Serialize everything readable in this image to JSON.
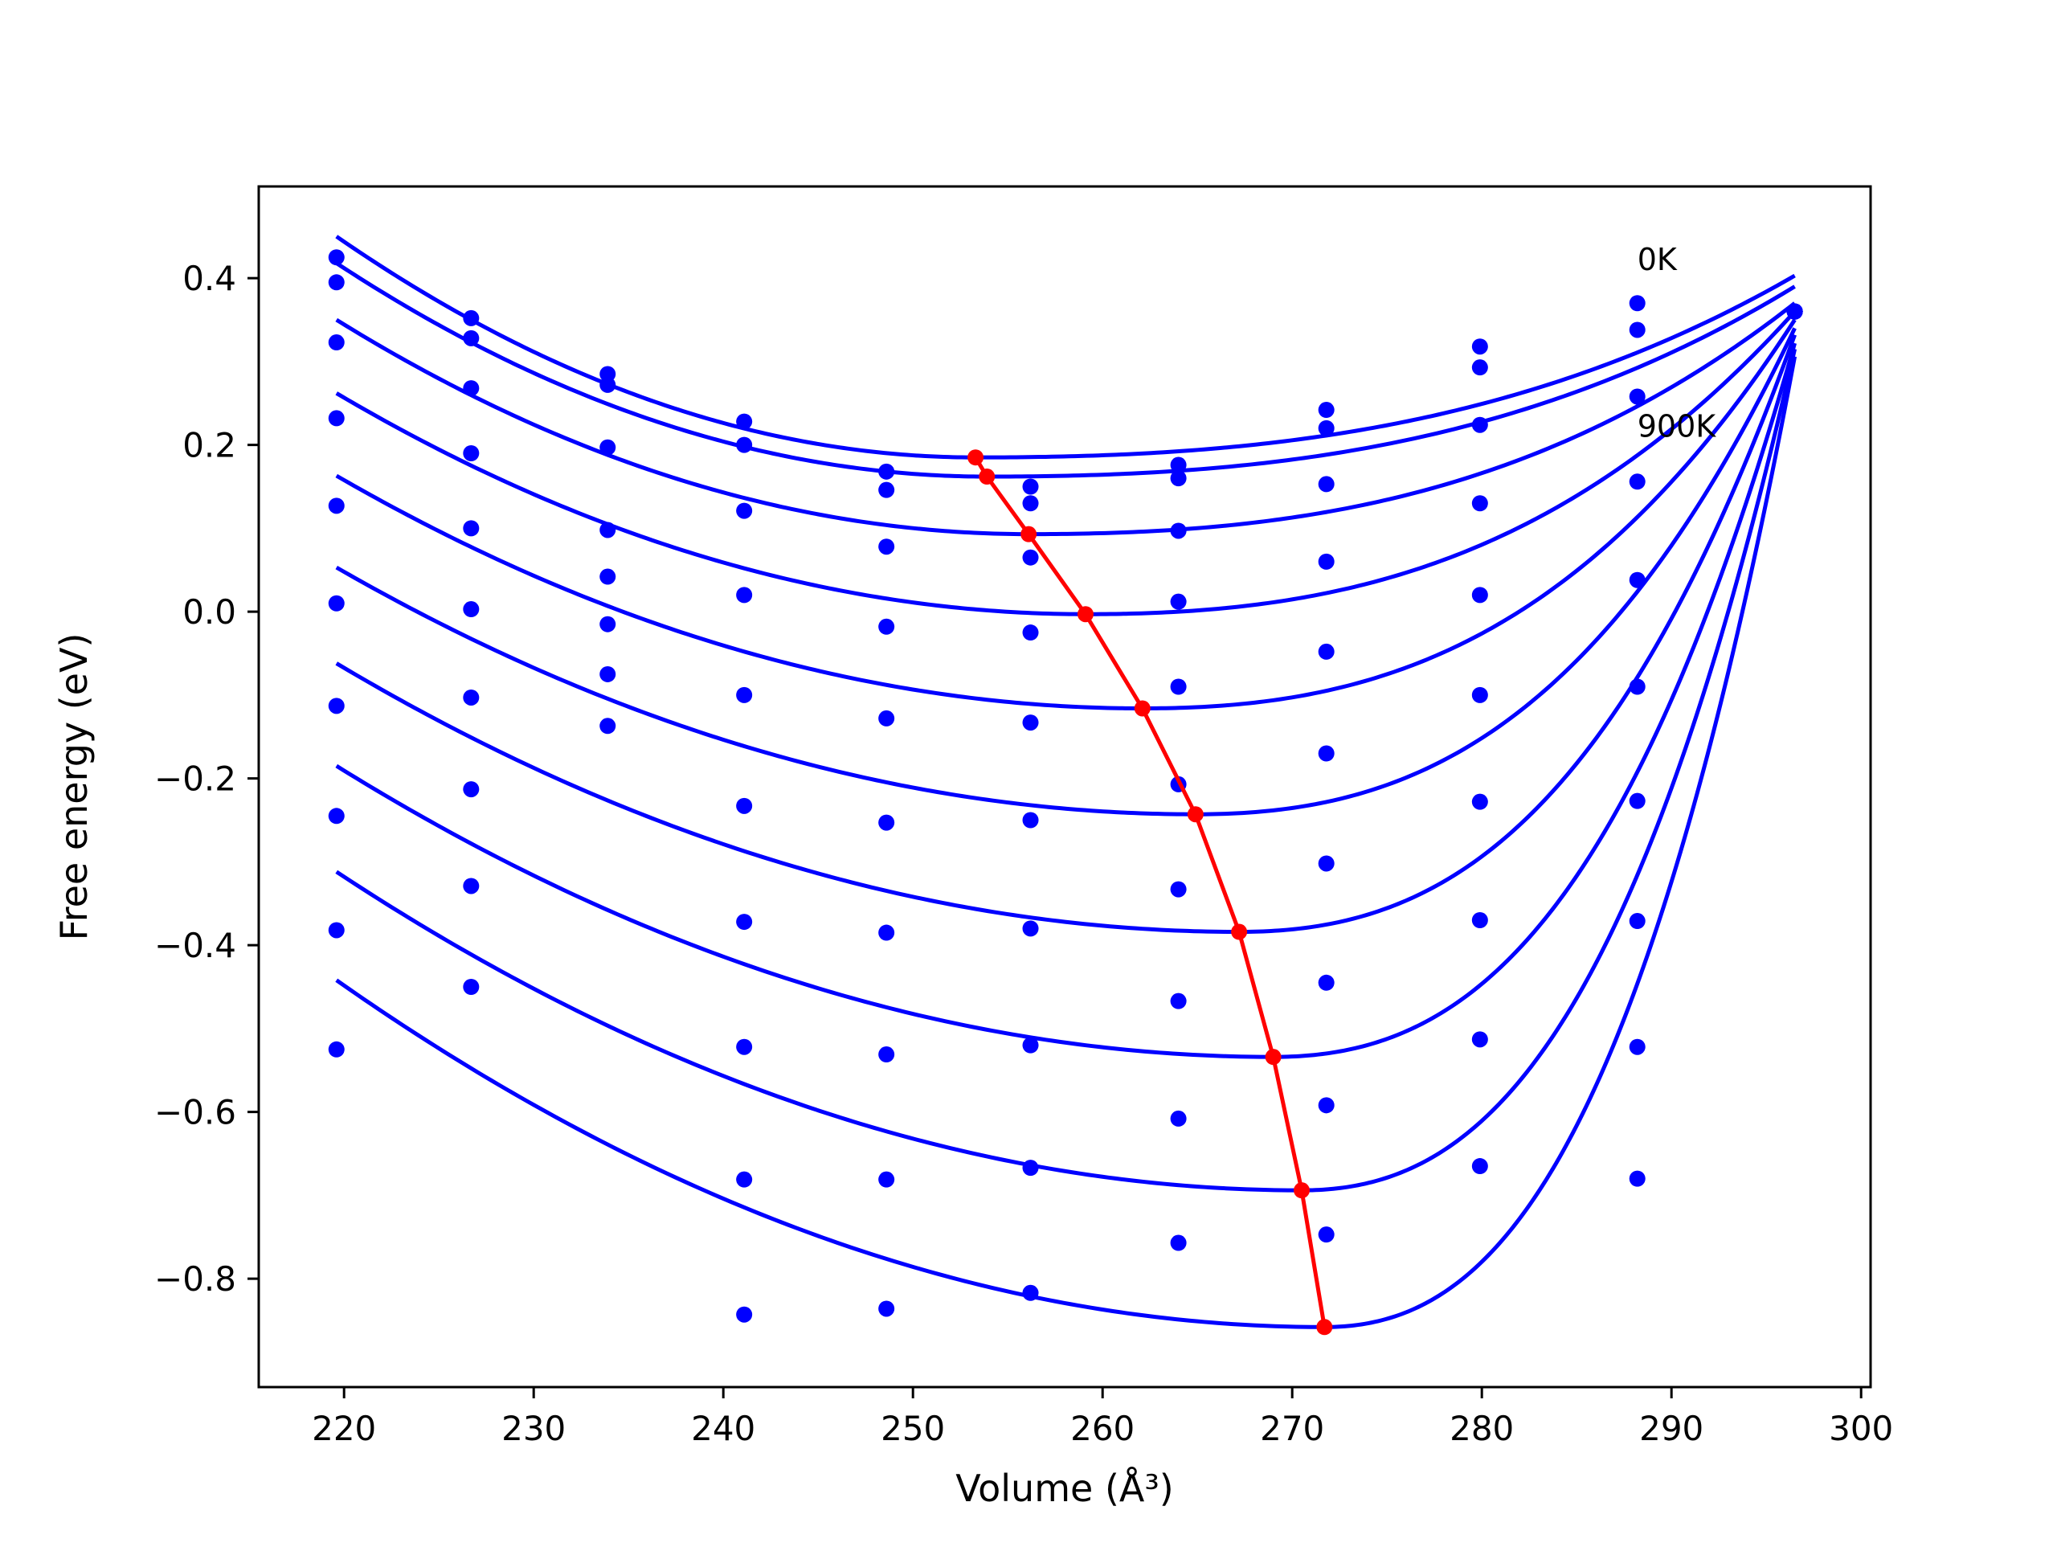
{
  "chart_data": {
    "type": "scatter",
    "xlabel": "Volume (Å³)",
    "ylabel": "Free energy (eV)",
    "xlim": [
      215.5,
      300.5
    ],
    "ylim": [
      -0.93,
      0.51
    ],
    "x_ticks": [
      220,
      230,
      240,
      250,
      260,
      270,
      280,
      290,
      300
    ],
    "y_ticks": [
      0.4,
      0.2,
      0.0,
      -0.2,
      -0.4,
      -0.6,
      -0.8
    ],
    "y_tick_labels": [
      "0.4",
      "0.2",
      "0.0",
      "−0.2",
      "−0.4",
      "−0.6",
      "−0.8"
    ],
    "grid": false,
    "annotations": [
      {
        "text": "0K",
        "x": 288.2,
        "y": 0.41
      },
      {
        "text": "900K",
        "x": 288.2,
        "y": 0.21
      }
    ],
    "colors": {
      "fit": "#0000ff",
      "points": "#0000ff",
      "minima": "#ff0000"
    },
    "volumes": [
      219.6,
      226.7,
      233.9,
      241.1,
      248.6,
      256.2,
      264.0,
      271.8,
      279.9,
      288.2,
      296.5
    ],
    "series": [
      {
        "points": [
          0.425,
          0.352,
          0.285,
          0.228,
          0.168,
          0.15,
          0.176,
          0.242,
          0.318,
          0.37,
          0.36
        ],
        "fit": {
          "x_start": 219.6,
          "y_start": 0.45,
          "x_min": 253.3,
          "y_min": 0.185,
          "y_end": 0.403
        }
      },
      {
        "points": [
          0.395,
          0.328,
          0.272,
          0.2,
          0.146,
          0.13,
          0.16,
          0.22,
          0.293,
          0.338,
          0.36
        ],
        "fit": {
          "x_start": 219.6,
          "y_start": 0.418,
          "x_min": 253.9,
          "y_min": 0.162,
          "y_end": 0.39
        }
      },
      {
        "points": [
          0.323,
          0.268,
          0.197,
          0.121,
          0.078,
          0.065,
          0.097,
          0.153,
          0.224,
          0.258,
          0.36
        ],
        "fit": {
          "x_start": 219.6,
          "y_start": 0.35,
          "x_min": 256.1,
          "y_min": 0.093,
          "y_end": 0.37
        }
      },
      {
        "points": [
          0.232,
          0.19,
          0.098,
          0.02,
          -0.018,
          -0.025,
          0.012,
          0.06,
          0.13,
          0.156,
          0.36
        ],
        "fit": {
          "x_start": 219.6,
          "y_start": 0.262,
          "x_min": 259.1,
          "y_min": -0.003,
          "y_end": 0.36
        }
      },
      {
        "points": [
          0.127,
          0.1,
          0.042,
          -0.1,
          -0.128,
          -0.133,
          -0.09,
          -0.048,
          0.02,
          0.038,
          0.36
        ],
        "fit": {
          "x_start": 219.6,
          "y_start": 0.163,
          "x_min": 262.1,
          "y_min": -0.116,
          "y_end": 0.35
        }
      },
      {
        "points": [
          0.01,
          0.003,
          -0.015,
          -0.233,
          -0.253,
          -0.25,
          -0.207,
          -0.17,
          -0.1,
          -0.09,
          0.36
        ],
        "fit": {
          "x_start": 219.6,
          "y_start": 0.053,
          "x_min": 264.9,
          "y_min": -0.243,
          "y_end": 0.34
        }
      },
      {
        "points": [
          -0.113,
          -0.103,
          -0.075,
          -0.372,
          -0.385,
          -0.38,
          -0.333,
          -0.302,
          -0.228,
          -0.227,
          0.36
        ],
        "fit": {
          "x_start": 219.6,
          "y_start": -0.062,
          "x_min": 267.2,
          "y_min": -0.384,
          "y_end": 0.332
        }
      },
      {
        "points": [
          -0.245,
          -0.213,
          -0.137,
          -0.522,
          -0.531,
          -0.52,
          -0.467,
          -0.445,
          -0.37,
          -0.371,
          0.36
        ],
        "fit": {
          "x_start": 219.6,
          "y_start": -0.185,
          "x_min": 269.0,
          "y_min": -0.534,
          "y_end": 0.322
        }
      },
      {
        "points": [
          -0.382,
          -0.329,
          null,
          -0.681,
          -0.681,
          -0.667,
          -0.608,
          -0.592,
          -0.513,
          -0.522,
          0.36
        ],
        "fit": {
          "x_start": 219.6,
          "y_start": -0.312,
          "x_min": 270.5,
          "y_min": -0.694,
          "y_end": 0.315
        }
      },
      {
        "points": [
          -0.525,
          -0.45,
          null,
          -0.843,
          -0.836,
          -0.817,
          -0.757,
          -0.747,
          -0.665,
          -0.68,
          0.36
        ],
        "fit": {
          "x_start": 219.6,
          "y_start": -0.442,
          "x_min": 271.7,
          "y_min": -0.858,
          "y_end": 0.306
        }
      }
    ],
    "minima": {
      "name": "equilibrium volume",
      "x": [
        253.3,
        253.9,
        256.1,
        259.1,
        262.1,
        264.9,
        267.2,
        269.0,
        270.5,
        271.7
      ],
      "y": [
        0.185,
        0.162,
        0.093,
        -0.003,
        -0.116,
        -0.243,
        -0.384,
        -0.534,
        -0.694,
        -0.858
      ]
    }
  }
}
